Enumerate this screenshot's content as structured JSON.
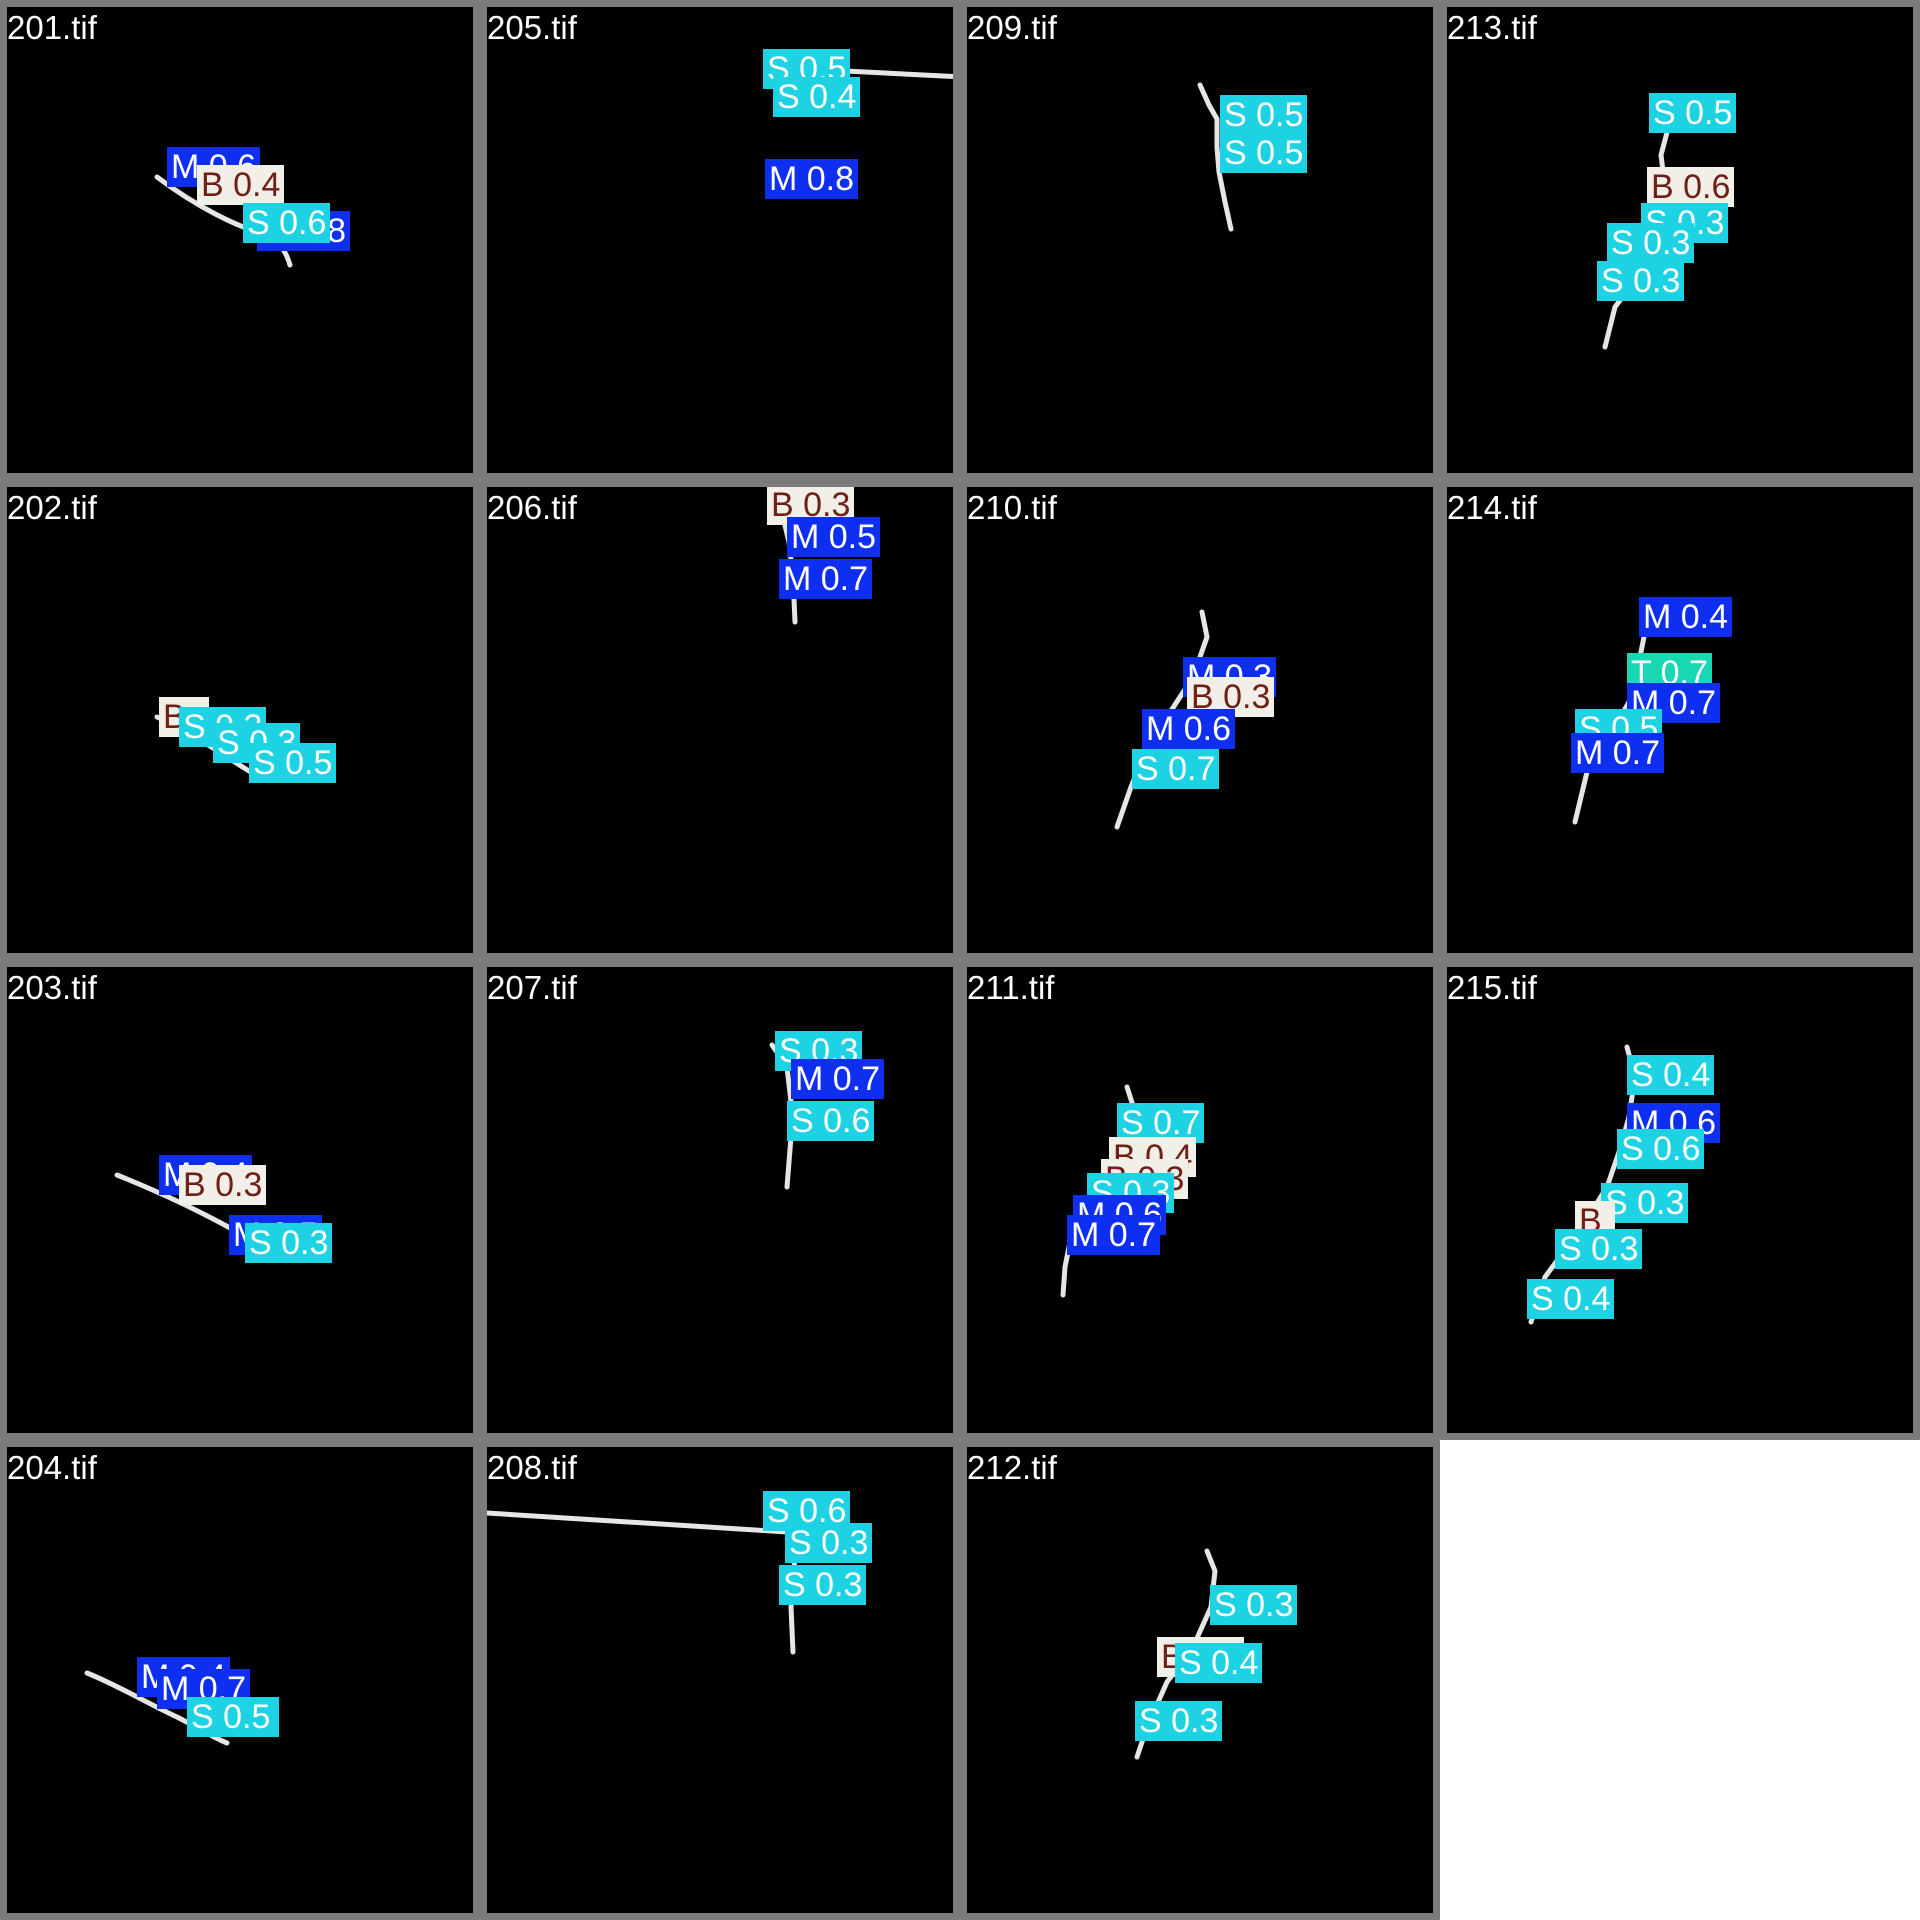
{
  "colors": {
    "frame": "#7c7c7c",
    "background": "#000000",
    "M": "#0f2ff0",
    "S": "#1dd2e2",
    "B": "#f2efe9",
    "B_text": "#6e1f16",
    "T": "#18d8b4"
  },
  "tiles": [
    {
      "name": "201.tif",
      "labels": [
        {
          "cls": "M",
          "text": "M 0.6"
        },
        {
          "cls": "B",
          "text": "B 0.4"
        },
        {
          "cls": "M",
          "text": "M 0.8"
        },
        {
          "cls": "S",
          "text": "S 0.6"
        }
      ]
    },
    {
      "name": "205.tif",
      "labels": [
        {
          "cls": "S",
          "text": "S 0.5"
        },
        {
          "cls": "S",
          "text": "S 0.4"
        },
        {
          "cls": "M",
          "text": "M 0.8"
        }
      ]
    },
    {
      "name": "209.tif",
      "labels": [
        {
          "cls": "S",
          "text": "S 0.5"
        },
        {
          "cls": "S",
          "text": "S 0.5"
        }
      ]
    },
    {
      "name": "213.tif",
      "labels": [
        {
          "cls": "S",
          "text": "S 0.5"
        },
        {
          "cls": "B",
          "text": "B 0.6"
        },
        {
          "cls": "S",
          "text": "S 0.3"
        },
        {
          "cls": "S",
          "text": "S 0.3"
        },
        {
          "cls": "S",
          "text": "S 0.3"
        }
      ]
    },
    {
      "name": "202.tif",
      "labels": [
        {
          "cls": "B",
          "text": "B"
        },
        {
          "cls": "S",
          "text": "S 0.3"
        },
        {
          "cls": "S",
          "text": "S 0.3"
        },
        {
          "cls": "S",
          "text": "S 0.5"
        }
      ]
    },
    {
      "name": "206.tif",
      "labels": [
        {
          "cls": "B",
          "text": "B 0.3"
        },
        {
          "cls": "M",
          "text": "M 0.5"
        },
        {
          "cls": "M",
          "text": "M 0.7"
        }
      ]
    },
    {
      "name": "210.tif",
      "labels": [
        {
          "cls": "M",
          "text": "M 0.3"
        },
        {
          "cls": "B",
          "text": "B 0.3"
        },
        {
          "cls": "M",
          "text": "M 0.6"
        },
        {
          "cls": "S",
          "text": "S 0.7"
        }
      ]
    },
    {
      "name": "214.tif",
      "labels": [
        {
          "cls": "M",
          "text": "M 0.4"
        },
        {
          "cls": "T",
          "text": "T 0.7"
        },
        {
          "cls": "M",
          "text": "M 0.7"
        },
        {
          "cls": "S",
          "text": "S 0.5"
        },
        {
          "cls": "M",
          "text": "M 0.7"
        }
      ]
    },
    {
      "name": "203.tif",
      "labels": [
        {
          "cls": "M",
          "text": "M 0.4"
        },
        {
          "cls": "B",
          "text": "B 0.3"
        },
        {
          "cls": "M",
          "text": "M 0.5"
        },
        {
          "cls": "S",
          "text": "S 0.3"
        }
      ]
    },
    {
      "name": "207.tif",
      "labels": [
        {
          "cls": "S",
          "text": "S 0.3"
        },
        {
          "cls": "M",
          "text": "M 0.7"
        },
        {
          "cls": "S",
          "text": "S 0.6"
        }
      ]
    },
    {
      "name": "211.tif",
      "labels": [
        {
          "cls": "S",
          "text": "S 0.7"
        },
        {
          "cls": "B",
          "text": "B 0.4"
        },
        {
          "cls": "B",
          "text": "B 0.3"
        },
        {
          "cls": "S",
          "text": "S 0.3"
        },
        {
          "cls": "M",
          "text": "M 0.6"
        },
        {
          "cls": "M",
          "text": "M 0.7"
        }
      ]
    },
    {
      "name": "215.tif",
      "labels": [
        {
          "cls": "S",
          "text": "S 0.4"
        },
        {
          "cls": "M",
          "text": "M 0.6"
        },
        {
          "cls": "S",
          "text": "S 0.6"
        },
        {
          "cls": "S",
          "text": "S 0.3"
        },
        {
          "cls": "B",
          "text": "B"
        },
        {
          "cls": "S",
          "text": "S 0.3"
        },
        {
          "cls": "S",
          "text": "S 0.4"
        }
      ]
    },
    {
      "name": "204.tif",
      "labels": [
        {
          "cls": "M",
          "text": "M 0.4"
        },
        {
          "cls": "M",
          "text": "M 0.7"
        },
        {
          "cls": "S",
          "text": "S 0.5"
        }
      ]
    },
    {
      "name": "208.tif",
      "labels": [
        {
          "cls": "S",
          "text": "S 0.6"
        },
        {
          "cls": "S",
          "text": "S 0.3"
        },
        {
          "cls": "S",
          "text": "S 0.3"
        }
      ]
    },
    {
      "name": "212.tif",
      "labels": [
        {
          "cls": "S",
          "text": "S 0.3"
        },
        {
          "cls": "B",
          "text": "B 0.6"
        },
        {
          "cls": "S",
          "text": "S 0.4"
        },
        {
          "cls": "S",
          "text": "S 0.3"
        }
      ]
    }
  ]
}
